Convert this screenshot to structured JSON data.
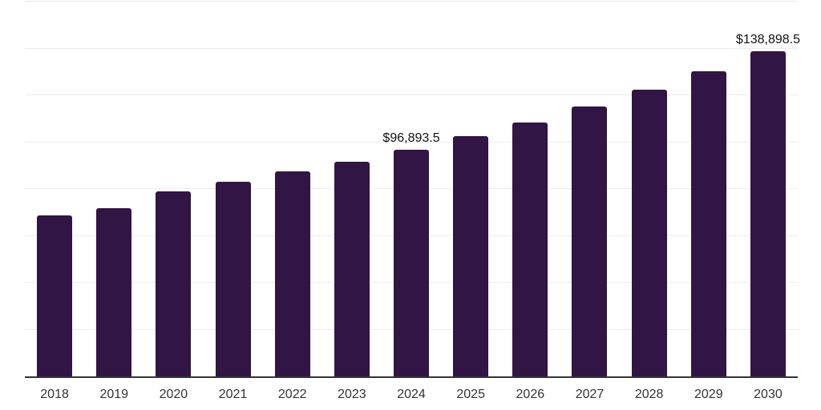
{
  "chart_data": {
    "type": "bar",
    "title": "",
    "xlabel": "",
    "ylabel": "",
    "categories": [
      "2018",
      "2019",
      "2020",
      "2021",
      "2022",
      "2023",
      "2024",
      "2025",
      "2026",
      "2027",
      "2028",
      "2029",
      "2030"
    ],
    "values": [
      68700,
      71900,
      79000,
      83000,
      87600,
      91800,
      96893.5,
      102400,
      108400,
      115100,
      122400,
      130200,
      138898.5
    ],
    "data_labels": [
      "",
      "",
      "",
      "",
      "",
      "",
      "$96,893.5",
      "",
      "",
      "",
      "",
      "",
      "$138,898.5"
    ],
    "ylim": [
      0,
      160000
    ],
    "gridline_step": 20000,
    "grid": "horizontal-only",
    "legend": "none",
    "y_axis_tick_labels": "none",
    "bar_color": "#301545",
    "axis_line_color": "#333333",
    "gridline_color": "#ececec",
    "top_gridline_color": "#e6e6e6",
    "data_label_color": "#111111",
    "tick_label_color": "#333333",
    "background_color": "#ffffff"
  }
}
